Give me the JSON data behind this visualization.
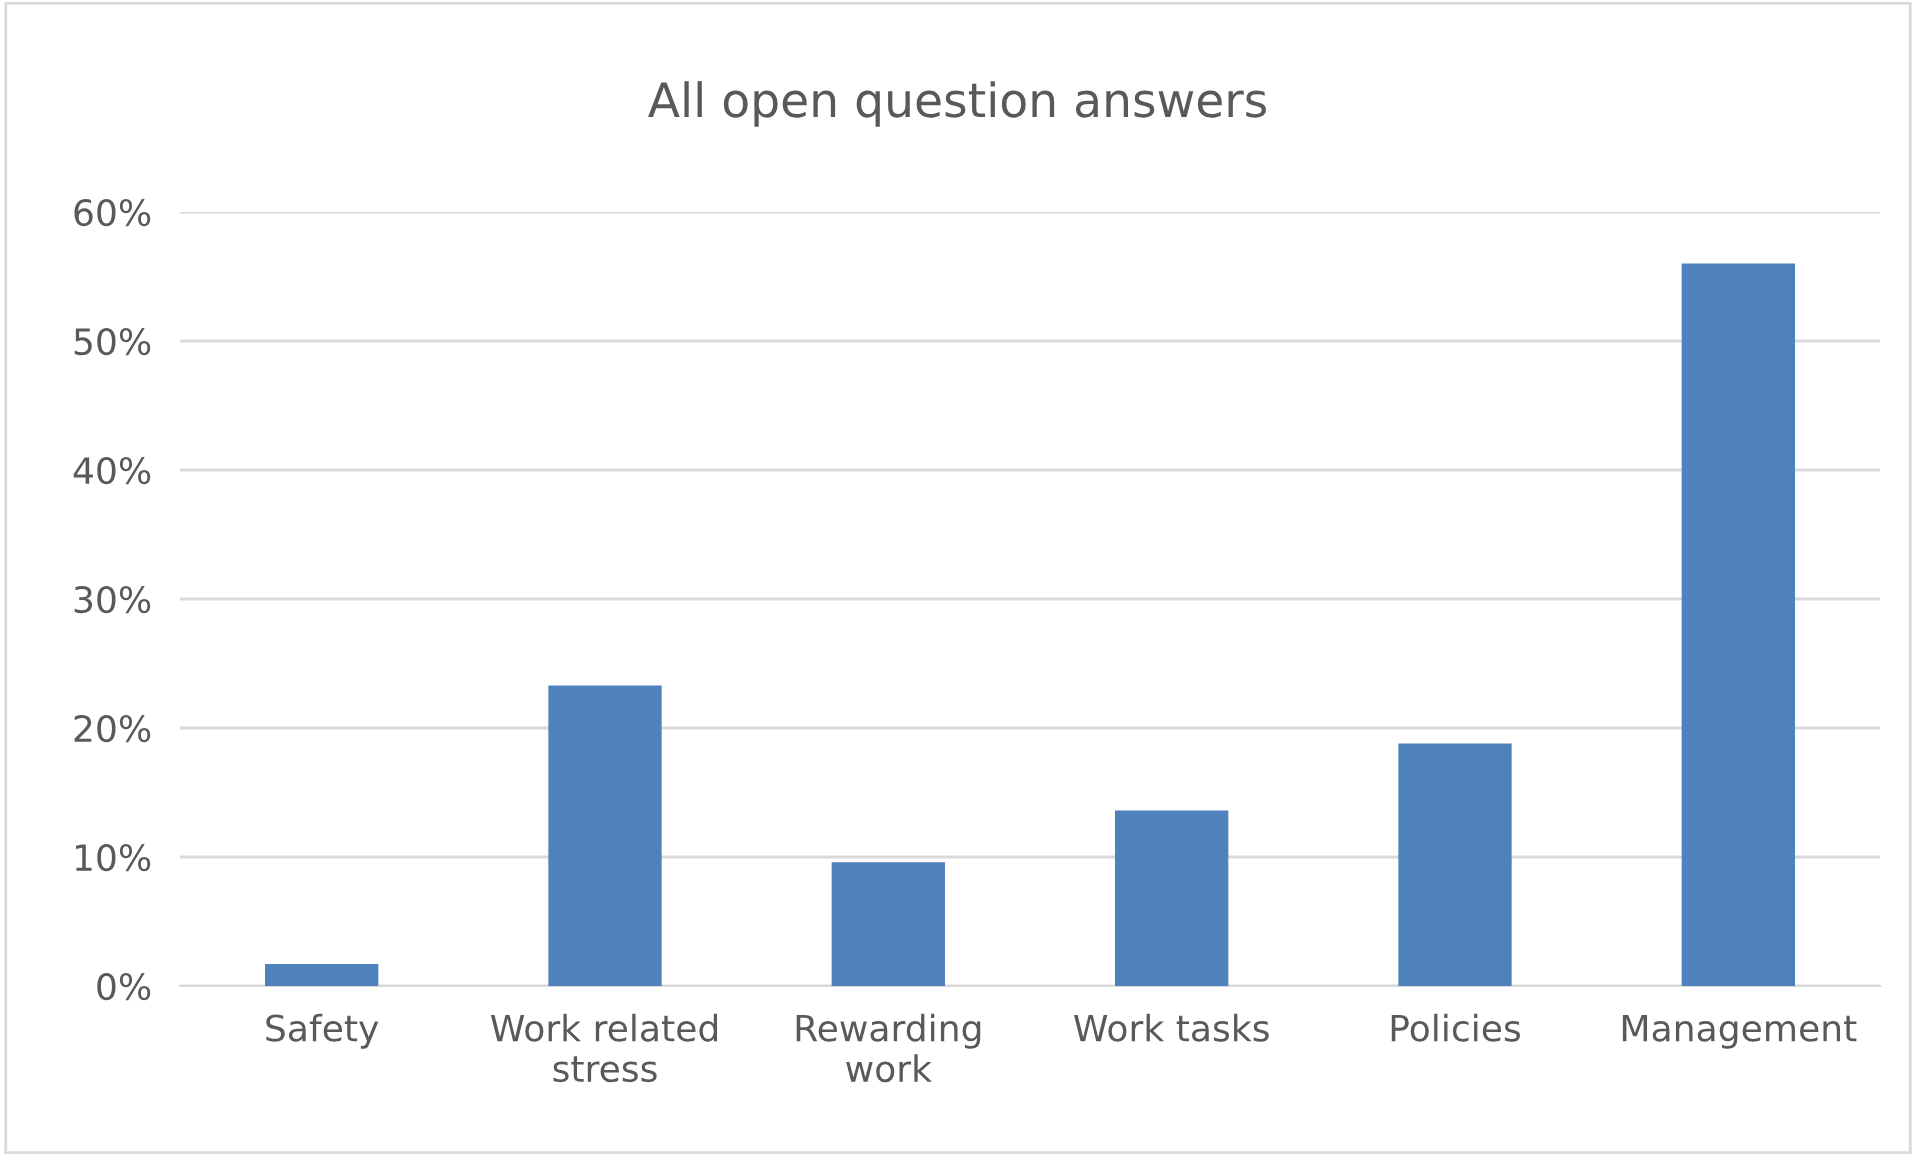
{
  "chart_data": {
    "type": "bar",
    "title": "All open question answers",
    "categories": [
      "Safety",
      "Work related stress",
      "Rewarding work",
      "Work tasks",
      "Policies",
      "Management"
    ],
    "values": [
      1.7,
      23.3,
      9.6,
      13.6,
      18.8,
      56.0
    ],
    "color": "#4f81bd",
    "ylim": [
      0,
      60
    ],
    "yticks": [
      {
        "value": 0,
        "label": "0%"
      },
      {
        "value": 10,
        "label": "10%"
      },
      {
        "value": 20,
        "label": "20%"
      },
      {
        "value": 30,
        "label": "30%"
      },
      {
        "value": 40,
        "label": "40%"
      },
      {
        "value": 50,
        "label": "50%"
      },
      {
        "value": 60,
        "label": "60%"
      }
    ],
    "grid": "y",
    "legend": false
  }
}
